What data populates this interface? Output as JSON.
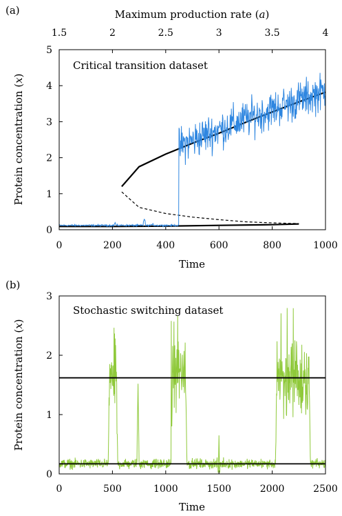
{
  "chart_data": [
    {
      "panel_label": "(a)",
      "type": "line",
      "annotation": "Critical transition dataset",
      "xlabel": "Time",
      "ylabel": "Protein concentration (x)",
      "x_ticks": [
        "0",
        "200",
        "400",
        "600",
        "800",
        "1000"
      ],
      "y_ticks": [
        "0",
        "1",
        "2",
        "3",
        "4",
        "5"
      ],
      "xlim": [
        0,
        1000
      ],
      "ylim": [
        0,
        5
      ],
      "top_axis": {
        "label": "Maximum production rate (a)",
        "ticks": [
          "1.5",
          "2",
          "2.5",
          "3",
          "3.5",
          "4"
        ],
        "lim": [
          1.5,
          4
        ]
      },
      "series": [
        {
          "color": "#2e86e0",
          "style": "noisy trajectory",
          "segments": [
            {
              "x_start": 0,
              "x_end": 450,
              "mean": 0.12,
              "noise": 0.02
            },
            {
              "x_start": 450,
              "x_end": 1000,
              "mean_start": 2.3,
              "mean_end": 3.85,
              "noise": 0.45
            }
          ],
          "spikes": [
            {
              "x": 210,
              "y": 0.2
            },
            {
              "x": 320,
              "y": 0.3
            },
            {
              "x": 352,
              "y": 0.18
            }
          ]
        },
        {
          "color": "#000000",
          "style": "solid",
          "description_points": {
            "x": [
              235,
              300,
              400,
              500,
              600,
              700,
              800,
              900,
              1000
            ],
            "y": [
              1.2,
              1.75,
              2.1,
              2.4,
              2.68,
              2.98,
              3.27,
              3.55,
              3.82
            ]
          }
        },
        {
          "color": "#000000",
          "style": "dashed",
          "description_points": {
            "x": [
              235,
              300,
              400,
              500,
              600,
              700,
              800,
              900
            ],
            "y": [
              1.05,
              0.62,
              0.45,
              0.35,
              0.28,
              0.22,
              0.19,
              0.17
            ]
          }
        },
        {
          "color": "#000000",
          "style": "solid",
          "description_points": {
            "x": [
              0,
              200,
              400,
              600,
              800,
              900
            ],
            "y": [
              0.09,
              0.09,
              0.1,
              0.12,
              0.14,
              0.16
            ]
          }
        }
      ]
    },
    {
      "panel_label": "(b)",
      "type": "line",
      "annotation": "Stochastic switching dataset",
      "xlabel": "Time",
      "ylabel": "Protein concentration (x)",
      "x_ticks": [
        "0",
        "500",
        "1000",
        "1500",
        "2000",
        "2500"
      ],
      "y_ticks": [
        "0",
        "1",
        "2",
        "3"
      ],
      "xlim": [
        0,
        2500
      ],
      "ylim": [
        0,
        3
      ],
      "reference_lines": [
        1.62,
        0.17
      ],
      "series": [
        {
          "color": "#8fc93a",
          "style": "noisy trajectory",
          "baseline": 0.17,
          "baseline_noise": 0.07,
          "high_episodes": [
            {
              "x_start": 460,
              "x_end": 550,
              "level": 1.7,
              "noise": 0.55,
              "peak": 2.72
            },
            {
              "x_start": 1050,
              "x_end": 1200,
              "level": 1.8,
              "noise": 0.5,
              "peak": 2.7
            },
            {
              "x_start": 2030,
              "x_end": 2360,
              "level": 1.6,
              "noise": 0.5,
              "peak": 2.8
            }
          ],
          "spikes": [
            {
              "x": 740,
              "y": 1.52
            },
            {
              "x": 1500,
              "y": 0.65
            }
          ]
        }
      ]
    }
  ]
}
